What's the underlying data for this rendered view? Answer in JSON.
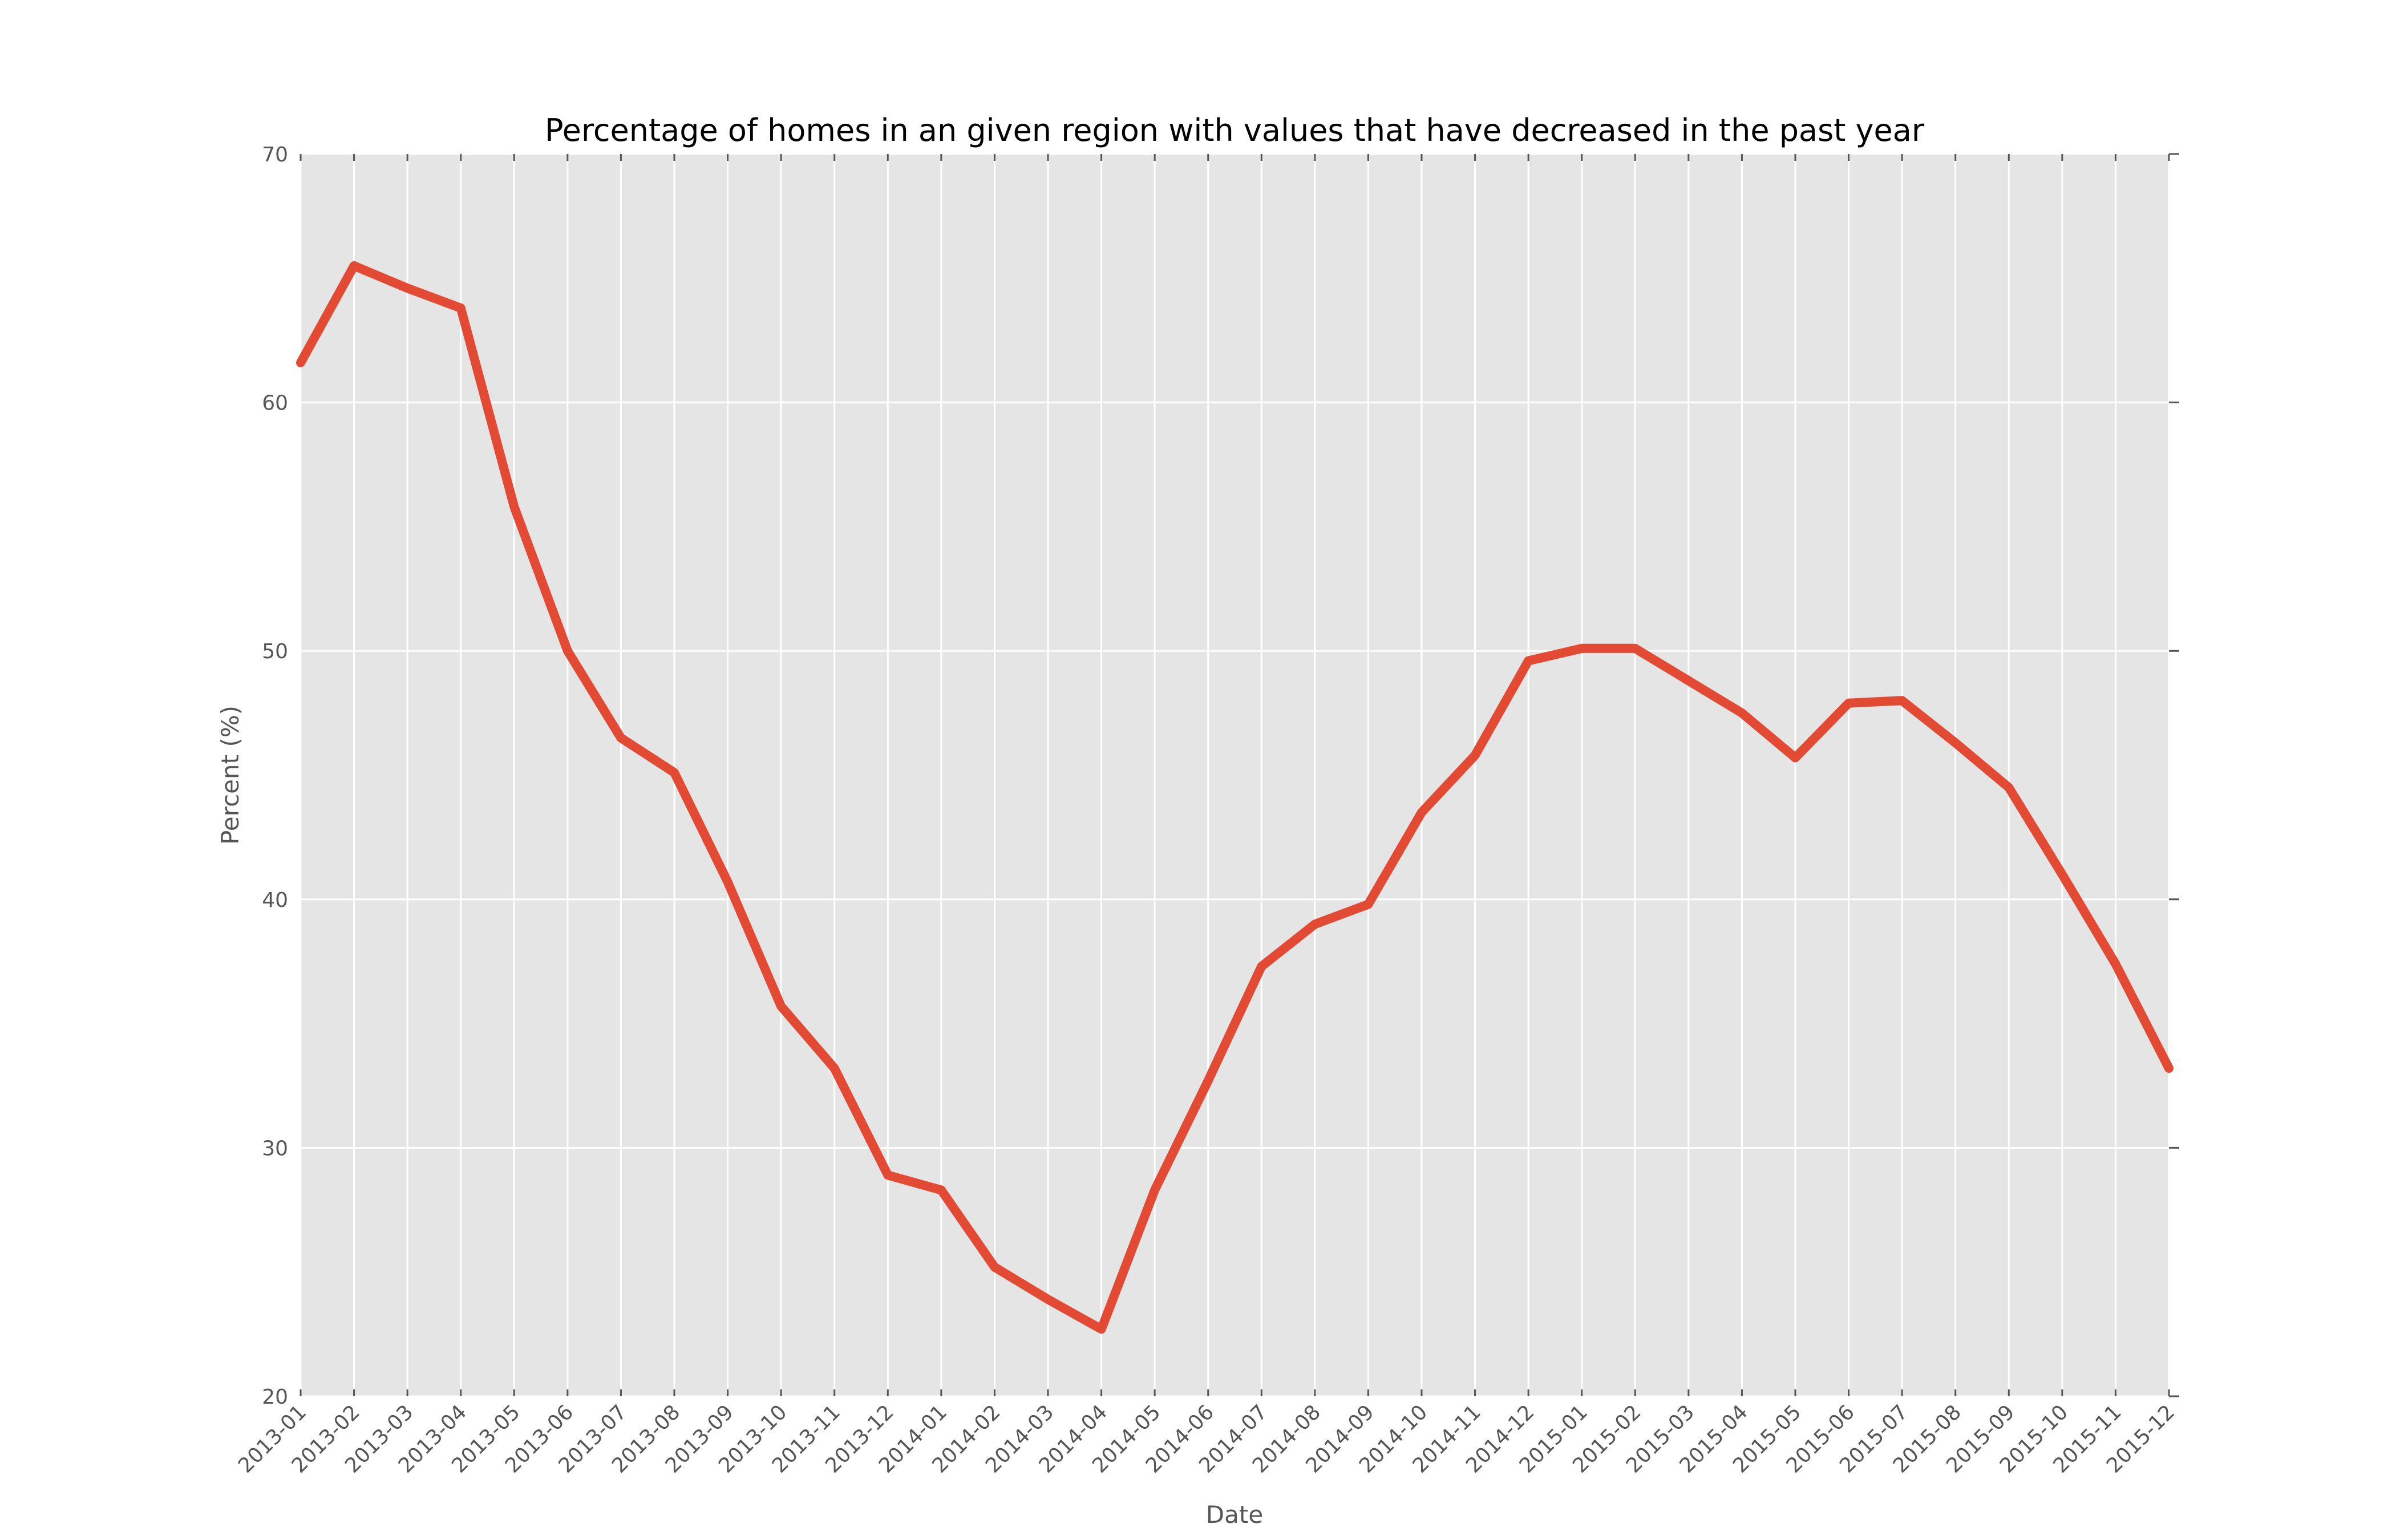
{
  "chart_data": {
    "type": "line",
    "title": "Percentage of homes in an given region with values that have decreased in the past year",
    "xlabel": "Date",
    "ylabel": "Percent (%)",
    "ylim": [
      20,
      70
    ],
    "yticks": [
      20,
      30,
      40,
      50,
      60,
      70
    ],
    "grid": true,
    "legend": "none",
    "colors": {
      "line": "#E24A33",
      "plot_bg": "#E5E5E5",
      "grid": "#FFFFFF",
      "tick": "#555555"
    },
    "x": [
      "2013-01",
      "2013-02",
      "2013-03",
      "2013-04",
      "2013-05",
      "2013-06",
      "2013-07",
      "2013-08",
      "2013-09",
      "2013-10",
      "2013-11",
      "2013-12",
      "2014-01",
      "2014-02",
      "2014-03",
      "2014-04",
      "2014-05",
      "2014-06",
      "2014-07",
      "2014-08",
      "2014-09",
      "2014-10",
      "2014-11",
      "2014-12",
      "2015-01",
      "2015-02",
      "2015-03",
      "2015-04",
      "2015-05",
      "2015-06",
      "2015-07",
      "2015-08",
      "2015-09",
      "2015-10",
      "2015-11",
      "2015-12"
    ],
    "series": [
      {
        "values": [
          61.6,
          65.5,
          64.6,
          63.8,
          55.8,
          50.0,
          46.5,
          45.1,
          40.7,
          35.7,
          33.2,
          28.9,
          28.3,
          25.2,
          23.9,
          22.7,
          28.3,
          32.7,
          37.3,
          39.0,
          39.8,
          43.5,
          45.8,
          49.6,
          50.1,
          50.1,
          48.8,
          47.5,
          45.7,
          47.9,
          48.0,
          46.3,
          44.5,
          41.0,
          37.4,
          33.2
        ]
      }
    ]
  }
}
